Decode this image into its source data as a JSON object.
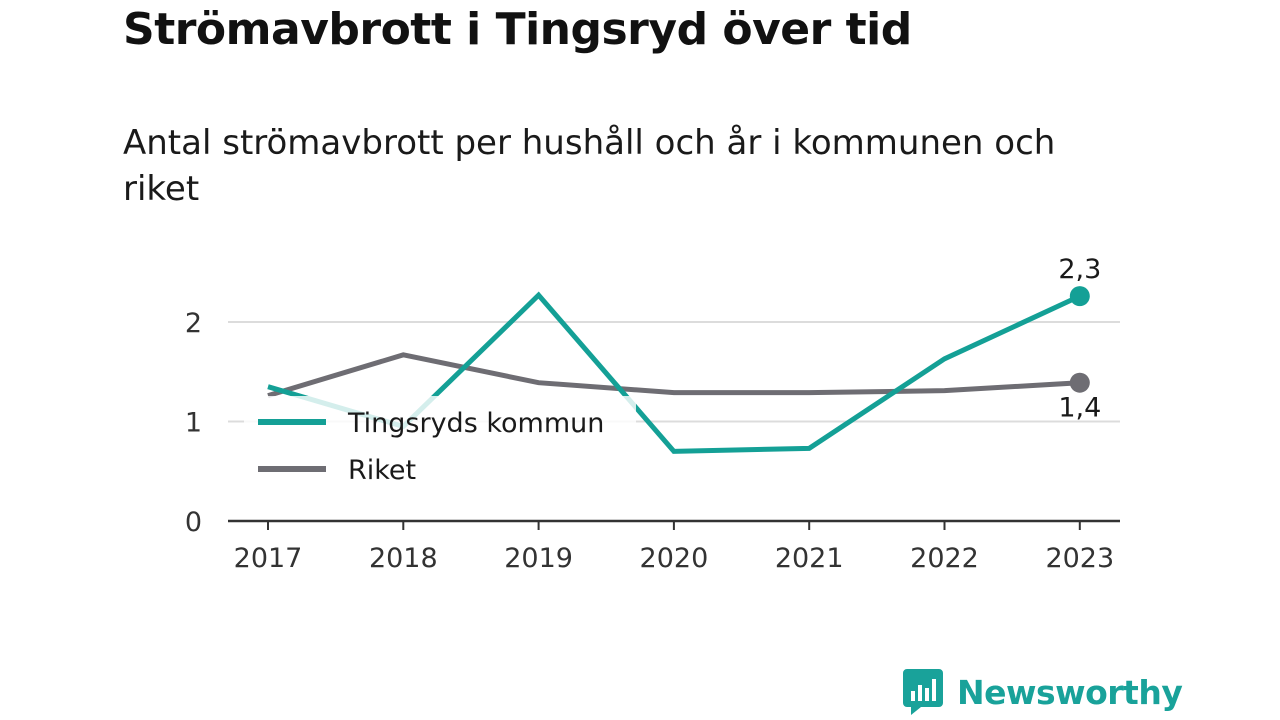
{
  "title": "Strömavbrott i Tingsryd över tid",
  "subtitle": "Antal strömavbrott per hushåll och år i kommunen och riket",
  "brand": {
    "name": "Newsworthy",
    "icon": "newsworthy-logo-icon",
    "color": "#19a29a"
  },
  "chart_data": {
    "type": "line",
    "x": [
      "2017",
      "2018",
      "2019",
      "2020",
      "2021",
      "2022",
      "2023"
    ],
    "series": [
      {
        "name": "Tingsryds kommun",
        "color": "#14a096",
        "values": [
          1.35,
          0.95,
          2.27,
          0.7,
          0.73,
          1.63,
          2.26
        ]
      },
      {
        "name": "Riket",
        "color": "#6e6d73",
        "values": [
          1.26,
          1.67,
          1.39,
          1.29,
          1.29,
          1.31,
          1.39
        ]
      }
    ],
    "end_labels": [
      "2,3",
      "1,4"
    ],
    "yticks": [
      0,
      1,
      2
    ],
    "ytick_labels": [
      "0",
      "1",
      "2"
    ],
    "ylim": [
      0,
      2.3
    ],
    "grid": true,
    "legend": "inside-left"
  }
}
